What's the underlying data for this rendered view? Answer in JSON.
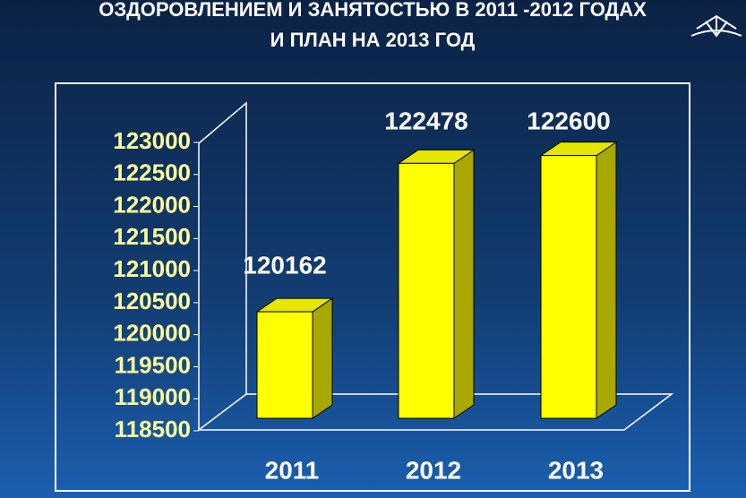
{
  "chart_data": {
    "type": "bar3d",
    "title": [
      "ОЗДОРОВЛЕНИЕМ И ЗАНЯТОСТЬЮ В  2011 -2012 ГОДАХ",
      "И ПЛАН НА 2013 ГОД"
    ],
    "categories": [
      "2011",
      "2012",
      "2013"
    ],
    "values": [
      120162,
      122478,
      122600
    ],
    "color": "#ffff00",
    "ylim": [
      118500,
      123000
    ],
    "yticks": [
      118500,
      119000,
      119500,
      120000,
      120500,
      121000,
      121500,
      122000,
      122500,
      123000
    ]
  }
}
